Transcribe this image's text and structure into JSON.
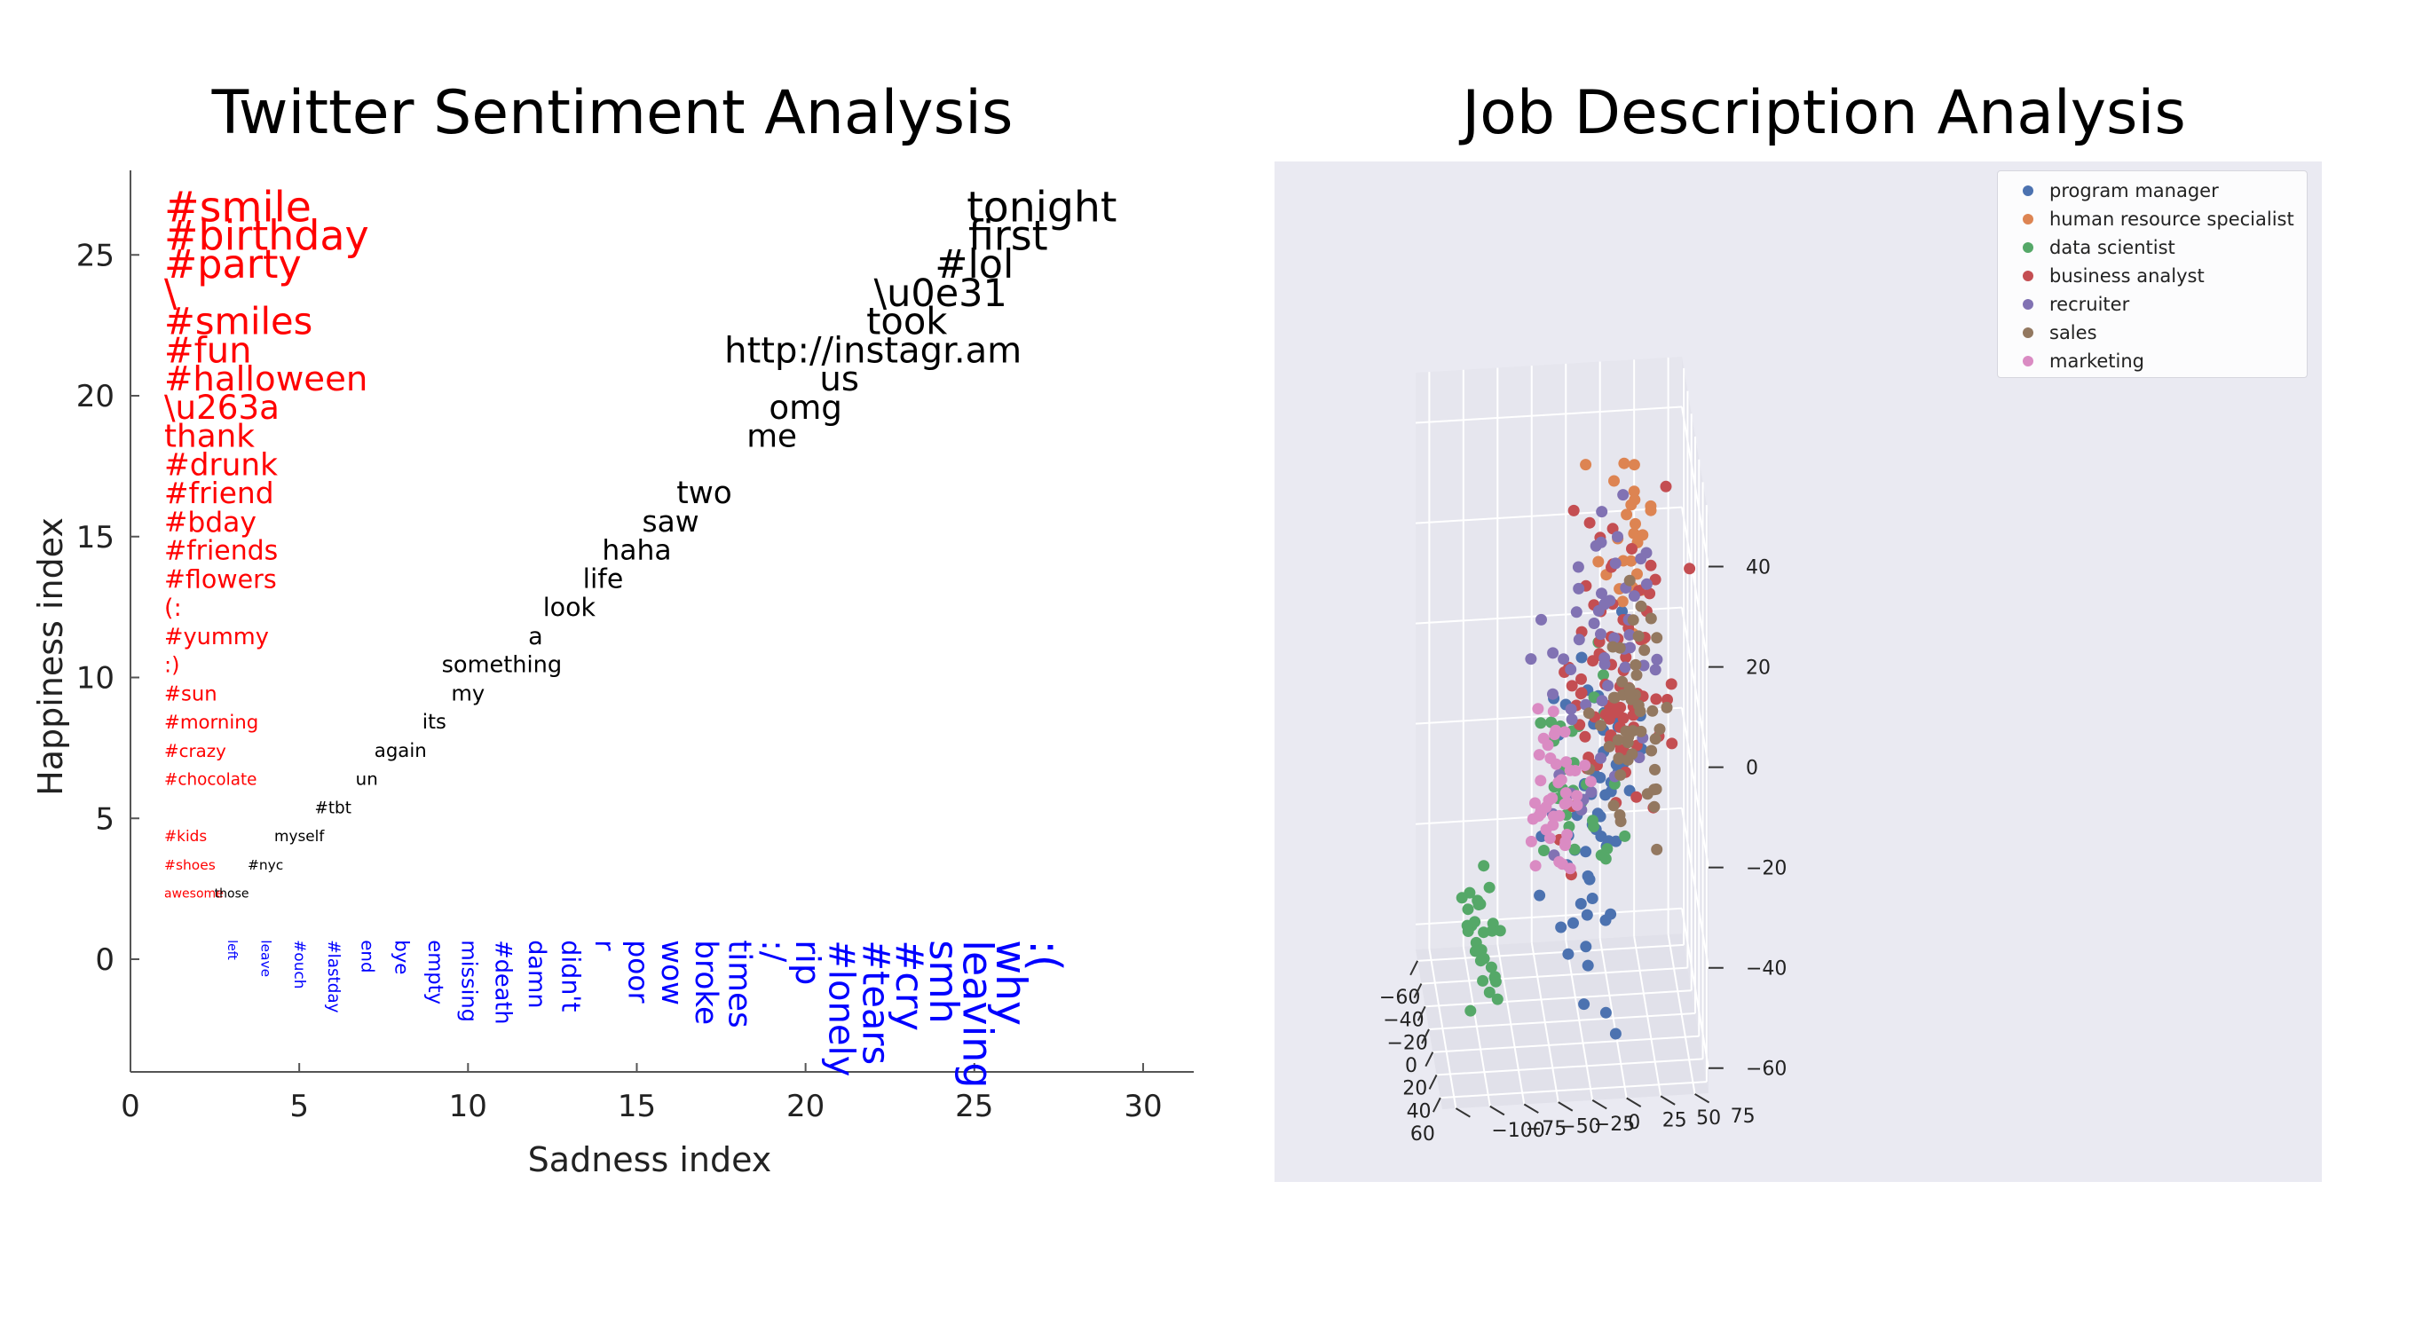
{
  "chart_data": [
    {
      "type": "scatter",
      "title": "Twitter Sentiment Analysis",
      "xlabel": "Sadness index",
      "ylabel": "Happiness index",
      "xlim": [
        0,
        31.5
      ],
      "ylim": [
        -4,
        28
      ],
      "xticks": [
        0,
        5,
        10,
        15,
        20,
        25,
        30
      ],
      "yticks": [
        0,
        5,
        10,
        15,
        20,
        25
      ],
      "grid": false,
      "colors": {
        "happy": "#ff0000",
        "neutral": "#000000",
        "sad": "#0000ff"
      },
      "happy_words": [
        {
          "label": "#smile",
          "x": 1,
          "y": 26.5
        },
        {
          "label": "#birthday",
          "x": 1,
          "y": 25.5
        },
        {
          "label": "#party",
          "x": 1,
          "y": 24.5
        },
        {
          "label": "\\",
          "x": 1,
          "y": 23.5
        },
        {
          "label": "#smiles",
          "x": 1,
          "y": 22.5
        },
        {
          "label": "#fun",
          "x": 1,
          "y": 21.5
        },
        {
          "label": "#halloween",
          "x": 1,
          "y": 20.5
        },
        {
          "label": "\\u263a",
          "x": 1,
          "y": 19.5
        },
        {
          "label": "thank",
          "x": 1,
          "y": 18.5
        },
        {
          "label": "#drunk",
          "x": 1,
          "y": 17.5
        },
        {
          "label": "#friend",
          "x": 1,
          "y": 16.5
        },
        {
          "label": "#bday",
          "x": 1,
          "y": 15.5
        },
        {
          "label": "#friends",
          "x": 1,
          "y": 14.5
        },
        {
          "label": "#flowers",
          "x": 1,
          "y": 13.5
        },
        {
          "label": "(:",
          "x": 1,
          "y": 12.5
        },
        {
          "label": "#yummy",
          "x": 1,
          "y": 11.5
        },
        {
          "label": ":)",
          "x": 1,
          "y": 10.5
        },
        {
          "label": "#sun",
          "x": 1,
          "y": 9.5
        },
        {
          "label": "#morning",
          "x": 1,
          "y": 8.5
        },
        {
          "label": "#crazy",
          "x": 1,
          "y": 7.5
        },
        {
          "label": "#chocolate",
          "x": 1,
          "y": 6.5
        },
        {
          "label": "#kids",
          "x": 1,
          "y": 4.5
        },
        {
          "label": "#shoes",
          "x": 1,
          "y": 3.5
        },
        {
          "label": "awesome",
          "x": 1,
          "y": 2.5
        }
      ],
      "neutral_words": [
        {
          "label": "those",
          "x": 3,
          "y": 2.5
        },
        {
          "label": "#nyc",
          "x": 4,
          "y": 3.5
        },
        {
          "label": "myself",
          "x": 5,
          "y": 4.5
        },
        {
          "label": "#tbt",
          "x": 6,
          "y": 5.5
        },
        {
          "label": "un",
          "x": 7,
          "y": 6.5
        },
        {
          "label": "again",
          "x": 8,
          "y": 7.5
        },
        {
          "label": "its",
          "x": 9,
          "y": 8.5
        },
        {
          "label": "my",
          "x": 10,
          "y": 9.5
        },
        {
          "label": "something",
          "x": 11,
          "y": 10.5
        },
        {
          "label": "a",
          "x": 12,
          "y": 11.5
        },
        {
          "label": "look",
          "x": 13,
          "y": 12.5
        },
        {
          "label": "life",
          "x": 14,
          "y": 13.5
        },
        {
          "label": "haha",
          "x": 15,
          "y": 14.5
        },
        {
          "label": "saw",
          "x": 16,
          "y": 15.5
        },
        {
          "label": "two",
          "x": 17,
          "y": 16.5
        },
        {
          "label": "me",
          "x": 19,
          "y": 18.5
        },
        {
          "label": "omg",
          "x": 20,
          "y": 19.5
        },
        {
          "label": "us",
          "x": 21,
          "y": 20.5
        },
        {
          "label": "http://instagr.am",
          "x": 22,
          "y": 21.5
        },
        {
          "label": "took",
          "x": 23,
          "y": 22.5
        },
        {
          "label": "\\u0e31",
          "x": 24,
          "y": 23.5
        },
        {
          "label": "#lol",
          "x": 25,
          "y": 24.5
        },
        {
          "label": "first",
          "x": 26,
          "y": 25.5
        },
        {
          "label": "tonight",
          "x": 27,
          "y": 26.5
        }
      ],
      "sad_words": [
        {
          "label": "left",
          "x": 3,
          "y": 1
        },
        {
          "label": "leave",
          "x": 4,
          "y": 1
        },
        {
          "label": "#ouch",
          "x": 5,
          "y": 1
        },
        {
          "label": "#lastday",
          "x": 6,
          "y": 1
        },
        {
          "label": "end",
          "x": 7,
          "y": 1
        },
        {
          "label": "bye",
          "x": 8,
          "y": 1
        },
        {
          "label": "empty",
          "x": 9,
          "y": 1
        },
        {
          "label": "missing",
          "x": 10,
          "y": 1
        },
        {
          "label": "#death",
          "x": 11,
          "y": 1
        },
        {
          "label": "damn",
          "x": 12,
          "y": 1
        },
        {
          "label": "didn't",
          "x": 13,
          "y": 1
        },
        {
          "label": "r",
          "x": 14,
          "y": 1
        },
        {
          "label": "poor",
          "x": 15,
          "y": 1
        },
        {
          "label": "wow",
          "x": 16,
          "y": 1
        },
        {
          "label": "broke",
          "x": 17,
          "y": 1
        },
        {
          "label": "times",
          "x": 18,
          "y": 1
        },
        {
          "label": ":/",
          "x": 19,
          "y": 1
        },
        {
          "label": "rip",
          "x": 20,
          "y": 1
        },
        {
          "label": "#lonely",
          "x": 21,
          "y": 1
        },
        {
          "label": "#tears",
          "x": 22,
          "y": 1
        },
        {
          "label": "#cry",
          "x": 23,
          "y": 1
        },
        {
          "label": "smh",
          "x": 24,
          "y": 1
        },
        {
          "label": "leaving",
          "x": 25,
          "y": 1
        },
        {
          "label": "why",
          "x": 26,
          "y": 1
        },
        {
          "label": ":(",
          "x": 27,
          "y": 1
        }
      ]
    },
    {
      "type": "scatter",
      "projection": "3d",
      "title": "Job Description Analysis",
      "xlabel": "",
      "ylabel": "",
      "zlabel": "",
      "xlim": [
        -70,
        70
      ],
      "ylim": [
        -110,
        85
      ],
      "zlim": [
        -65,
        50
      ],
      "xticks": [
        -60,
        -40,
        -20,
        0,
        20,
        40,
        60
      ],
      "yticks": [
        -100,
        -75,
        -50,
        -25,
        0,
        25,
        50,
        75
      ],
      "zticks": [
        -60,
        -40,
        -20,
        0,
        20,
        40
      ],
      "xtick_labels": [
        "−60",
        "−40",
        "−20",
        "0",
        "20",
        "40",
        "60"
      ],
      "ytick_labels": [
        "−100",
        "−75",
        "−50",
        "−25",
        "0",
        "25",
        "50",
        "75"
      ],
      "ztick_labels": [
        "−60",
        "−40",
        "−20",
        "0",
        "20",
        "40"
      ],
      "grid": true,
      "legend_position": "top-right",
      "series": [
        {
          "name": "program manager",
          "color": "#4c72b0",
          "cluster": [
            [
              20,
              0,
              -22,
              12
            ],
            [
              -2,
              8,
              -40,
              10
            ],
            [
              12,
              20,
              -5,
              10
            ]
          ],
          "n": 60
        },
        {
          "name": "human resource specialist",
          "color": "#dd8452",
          "cluster": [
            [
              -42,
              40,
              25,
              10
            ]
          ],
          "n": 26
        },
        {
          "name": "data scientist",
          "color": "#55a868",
          "cluster": [
            [
              45,
              -10,
              -5,
              12
            ],
            [
              -10,
              -70,
              -50,
              6
            ]
          ],
          "n": 60
        },
        {
          "name": "business analyst",
          "color": "#c44e52",
          "cluster": [
            [
              15,
              30,
              0,
              20
            ],
            [
              -25,
              20,
              0,
              12
            ]
          ],
          "n": 80
        },
        {
          "name": "recruiter",
          "color": "#8172b3",
          "cluster": [
            [
              -35,
              35,
              10,
              12
            ],
            [
              5,
              0,
              0,
              14
            ]
          ],
          "n": 55
        },
        {
          "name": "sales",
          "color": "#937860",
          "cluster": [
            [
              -45,
              45,
              -15,
              10
            ]
          ],
          "n": 50
        },
        {
          "name": "marketing",
          "color": "#da8bc3",
          "cluster": [
            [
              -12,
              -15,
              -20,
              9
            ]
          ],
          "n": 45
        }
      ]
    }
  ]
}
